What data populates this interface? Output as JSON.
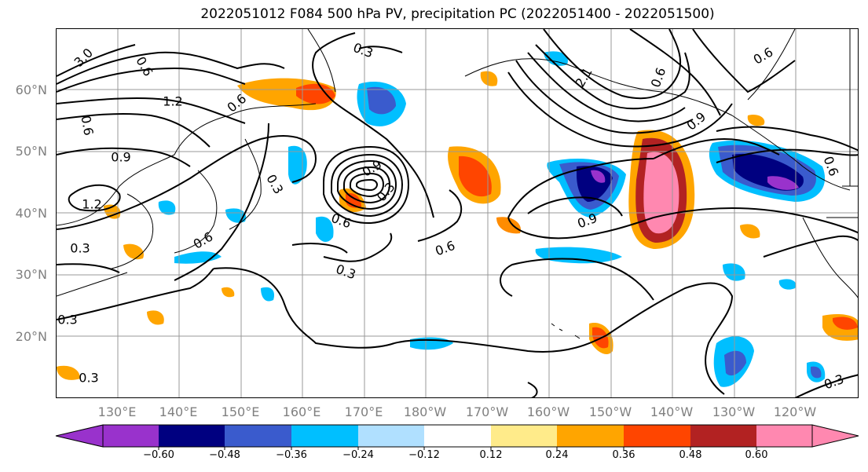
{
  "title": "2022051012 F084 500 hPa PV, precipitation PC (2022051400 - 2022051500)",
  "map": {
    "lat_labels": [
      "60°N",
      "50°N",
      "40°N",
      "30°N",
      "20°N"
    ],
    "lon_labels": [
      "130°E",
      "140°E",
      "150°E",
      "160°E",
      "170°E",
      "180°W",
      "170°W",
      "160°W",
      "150°W",
      "140°W",
      "130°W",
      "120°W"
    ],
    "contour_labels": [
      "3.0",
      "1.2",
      "0.6",
      "0.9",
      "1.2",
      "0.3",
      "0.6",
      "0.3",
      "0.6",
      "0.6",
      "0.3",
      "0.6",
      "0.3",
      "0.3",
      "0.3",
      "0.9",
      "0.6",
      "2.1",
      "0.6",
      "0.9",
      "0.6",
      "0.6",
      "0.9",
      "0.3",
      "0.3"
    ],
    "gridline_color": "#999999",
    "coast_color": "#000000"
  },
  "colorbar": {
    "ticks": [
      "−0.60",
      "−0.48",
      "−0.36",
      "−0.24",
      "−0.12",
      "0.12",
      "0.24",
      "0.36",
      "0.48",
      "0.60"
    ],
    "colors": [
      "#9932cc",
      "#000080",
      "#3a5bcd",
      "#00bfff",
      "#b0e0ff",
      "#ffffff",
      "#ffeb8a",
      "#ffa500",
      "#ff4500",
      "#b22222",
      "#ff88b0",
      "#ffc0e0"
    ]
  }
}
